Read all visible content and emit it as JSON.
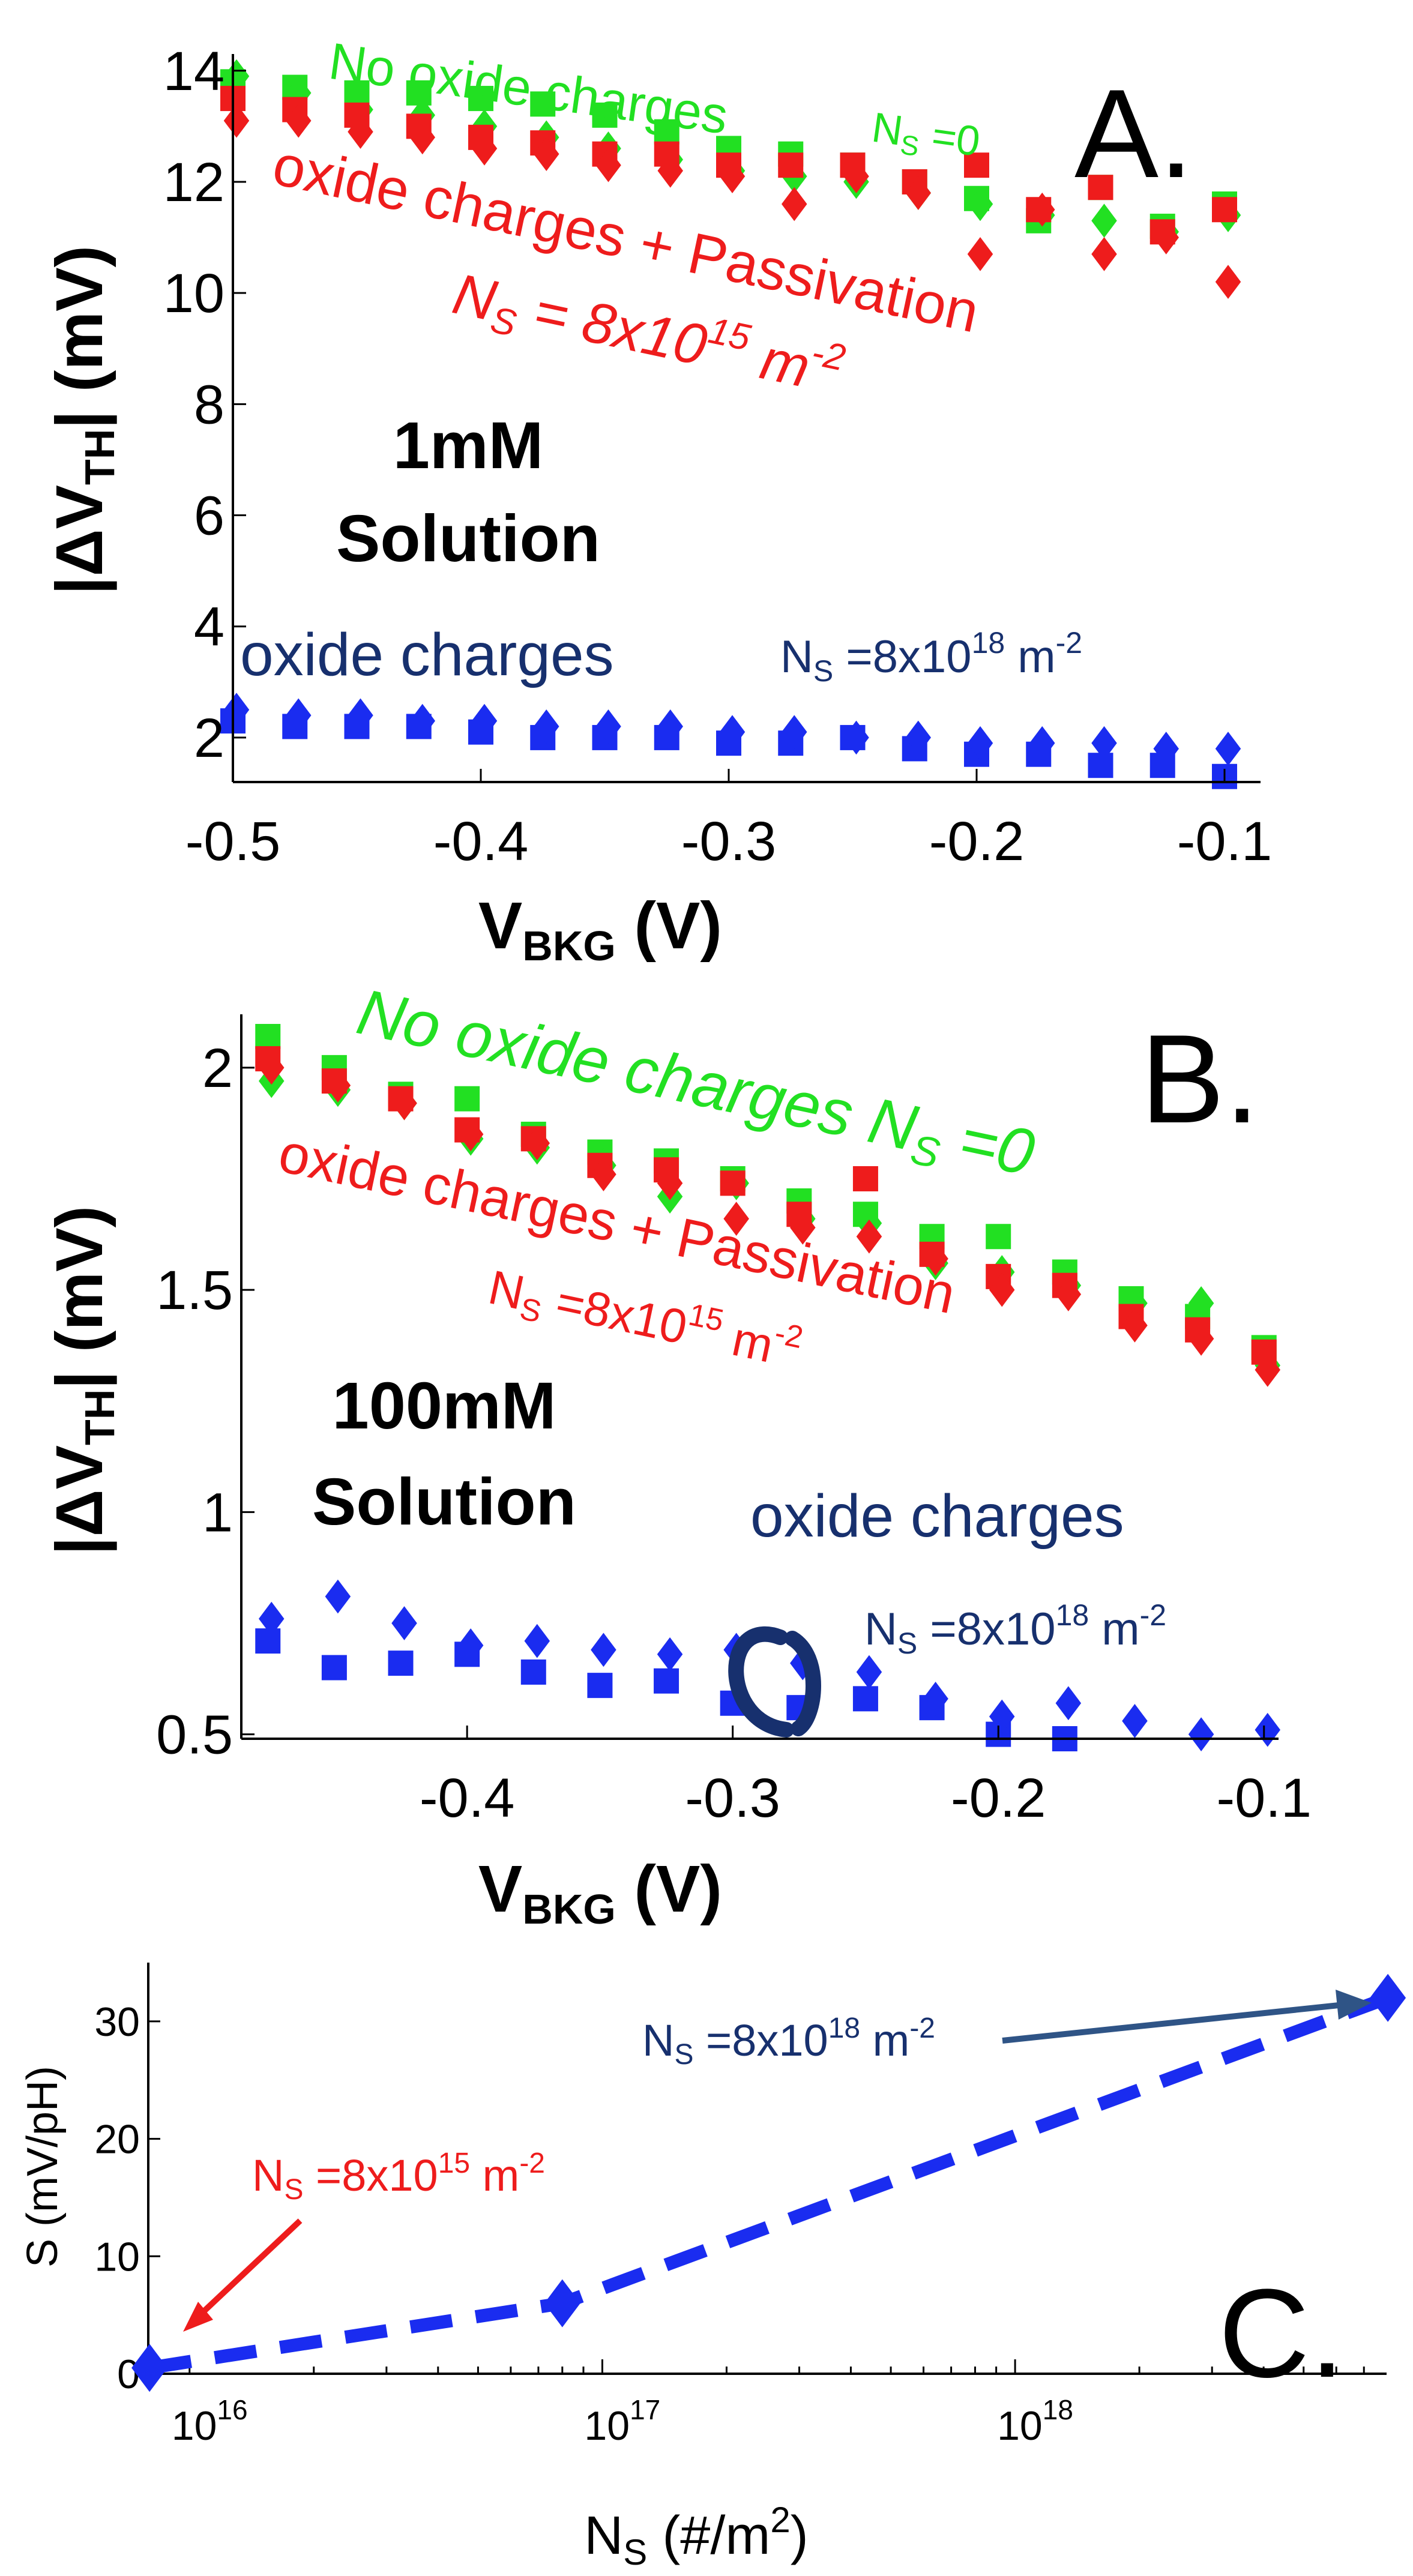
{
  "colors": {
    "no_oxide": "#22e022",
    "passivation": "#ee1c1c",
    "oxide": "#1a2cf0",
    "navy_text": "#17306e",
    "black": "#000000",
    "arrow_red": "#ee1c1c",
    "arrow_navy": "#2f5486"
  },
  "chart_data": [
    {
      "panel": "A",
      "type": "scatter",
      "panel_letter": "A.",
      "xlabel_main": "V",
      "xlabel_sub": "BKG",
      "xlabel_unit": " (V)",
      "ylabel_pre": "|ΔV",
      "ylabel_sub": "TH",
      "ylabel_post": "| (mV)",
      "xlim": [
        -0.5,
        -0.1
      ],
      "ylim": [
        1.2,
        14.3
      ],
      "xticks": [
        -0.5,
        -0.4,
        -0.3,
        -0.2,
        -0.1
      ],
      "xtick_labels": [
        "-0.5",
        "-0.4",
        "-0.3",
        "-0.2",
        "-0.1"
      ],
      "yticks": [
        2,
        4,
        6,
        8,
        10,
        12,
        14
      ],
      "ytick_labels": [
        "2",
        "4",
        "6",
        "8",
        "10",
        "12",
        "14"
      ],
      "solution_label": [
        "1mM",
        "Solution"
      ],
      "annotations": {
        "no_oxide": "No oxide charges",
        "no_oxide_ns": "N",
        "no_oxide_ns_sub": "S",
        "no_oxide_ns_val": " =0",
        "passivation_line1": "oxide charges + Passivation",
        "passivation_ns": "N",
        "passivation_ns_sub": "S",
        "passivation_ns_val": " = 8x10",
        "passivation_ns_exp": "15",
        "passivation_ns_unit": " m",
        "passivation_ns_unit_exp": "-2",
        "oxide": "oxide charges",
        "oxide_ns": "N",
        "oxide_ns_sub": "S",
        "oxide_ns_val": " =8x10",
        "oxide_ns_exp": "18",
        "oxide_ns_unit": " m",
        "oxide_ns_unit_exp": "-2"
      },
      "x": [
        -0.5,
        -0.475,
        -0.45,
        -0.425,
        -0.4,
        -0.375,
        -0.35,
        -0.325,
        -0.3,
        -0.275,
        -0.25,
        -0.225,
        -0.2,
        -0.175,
        -0.15,
        -0.125,
        -0.1
      ],
      "series": [
        {
          "name": "No oxide charges",
          "color_key": "no_oxide",
          "marker": "square",
          "values": [
            13.8,
            13.7,
            13.6,
            13.6,
            13.5,
            13.4,
            13.2,
            12.9,
            12.6,
            12.5,
            12.3,
            12.0,
            11.7,
            11.3,
            11.9,
            11.2,
            11.6
          ]
        },
        {
          "name": "No oxide charges",
          "color_key": "no_oxide",
          "marker": "diamond",
          "values": [
            13.9,
            13.6,
            13.3,
            13.2,
            13.0,
            12.8,
            12.6,
            12.4,
            12.2,
            12.1,
            12.0,
            11.8,
            11.6,
            11.4,
            11.3,
            11.1,
            11.4
          ]
        },
        {
          "name": "oxide charges + Passivation",
          "color_key": "passivation",
          "marker": "square",
          "values": [
            13.5,
            13.3,
            13.2,
            13.0,
            12.8,
            12.7,
            12.5,
            12.5,
            12.3,
            12.3,
            12.3,
            12.0,
            12.3,
            11.5,
            11.9,
            11.1,
            11.5
          ]
        },
        {
          "name": "oxide charges + Passivation",
          "color_key": "passivation",
          "marker": "diamond",
          "values": [
            13.1,
            13.1,
            12.9,
            12.8,
            12.6,
            12.5,
            12.3,
            12.2,
            12.1,
            11.6,
            12.1,
            11.8,
            10.7,
            11.5,
            10.7,
            11.0,
            10.2
          ]
        },
        {
          "name": "oxide charges",
          "color_key": "oxide",
          "marker": "square",
          "values": [
            2.3,
            2.2,
            2.2,
            2.2,
            2.1,
            2.0,
            2.0,
            2.0,
            1.9,
            1.9,
            2.0,
            1.8,
            1.7,
            1.7,
            1.5,
            1.5,
            1.3
          ]
        },
        {
          "name": "oxide charges",
          "color_key": "oxide",
          "marker": "diamond",
          "values": [
            2.5,
            2.4,
            2.4,
            2.3,
            2.3,
            2.2,
            2.2,
            2.2,
            2.1,
            2.1,
            2.0,
            2.0,
            1.9,
            1.9,
            1.9,
            1.8,
            1.8
          ]
        }
      ]
    },
    {
      "panel": "B",
      "type": "scatter",
      "panel_letter": "B.",
      "xlabel_main": "V",
      "xlabel_sub": "BKG",
      "xlabel_unit": " (V)",
      "ylabel_pre": "|ΔV",
      "ylabel_sub": "TH",
      "ylabel_post": "| (mV)",
      "xlim": [
        -0.485,
        -0.09
      ],
      "ylim": [
        0.49,
        2.12
      ],
      "xticks": [
        -0.4,
        -0.3,
        -0.2,
        -0.1
      ],
      "xtick_labels": [
        "-0.4",
        "-0.3",
        "-0.2",
        "-0.1"
      ],
      "yticks": [
        0.5,
        1,
        1.5,
        2
      ],
      "ytick_labels": [
        "0.5",
        "1",
        "1.5",
        "2"
      ],
      "solution_label": [
        "100mM",
        "Solution"
      ],
      "annotations": {
        "no_oxide": "No oxide charges N",
        "no_oxide_ns_sub": "S",
        "no_oxide_ns_val": " =0",
        "passivation_line1": "oxide charges + Passivation",
        "passivation_ns": "N",
        "passivation_ns_sub": "S",
        "passivation_ns_val": " =8x10",
        "passivation_ns_exp": "15",
        "passivation_ns_unit": " m",
        "passivation_ns_unit_exp": "-2",
        "oxide": "oxide charges",
        "oxide_ns": "N",
        "oxide_ns_sub": "S",
        "oxide_ns_val": " =8x10",
        "oxide_ns_exp": "18",
        "oxide_ns_unit": " m",
        "oxide_ns_unit_exp": "-2"
      },
      "x": [
        -0.475,
        -0.45,
        -0.425,
        -0.4,
        -0.375,
        -0.35,
        -0.325,
        -0.3,
        -0.275,
        -0.25,
        -0.225,
        -0.2,
        -0.175,
        -0.15,
        -0.125,
        -0.1
      ],
      "series": [
        {
          "name": "No oxide charges",
          "color_key": "no_oxide",
          "marker": "square",
          "values": [
            2.07,
            2.0,
            1.94,
            1.93,
            1.85,
            1.81,
            1.79,
            1.75,
            1.7,
            1.67,
            1.62,
            1.62,
            1.54,
            1.48,
            1.44,
            1.37
          ]
        },
        {
          "name": "No oxide charges",
          "color_key": "no_oxide",
          "marker": "diamond",
          "values": [
            1.97,
            1.95,
            1.92,
            1.84,
            1.82,
            1.78,
            1.71,
            1.74,
            1.66,
            1.65,
            1.56,
            1.54,
            1.51,
            1.47,
            1.47,
            1.33
          ]
        },
        {
          "name": "oxide charges + Passivation",
          "color_key": "passivation",
          "marker": "square",
          "values": [
            2.02,
            1.97,
            1.93,
            1.86,
            1.84,
            1.78,
            1.77,
            1.74,
            1.67,
            1.75,
            1.58,
            1.53,
            1.51,
            1.44,
            1.41,
            1.36
          ]
        },
        {
          "name": "oxide charges + Passivation",
          "color_key": "passivation",
          "marker": "diamond",
          "values": [
            2.0,
            1.96,
            1.92,
            1.85,
            1.83,
            1.76,
            1.74,
            1.66,
            1.64,
            1.62,
            1.57,
            1.5,
            1.49,
            1.42,
            1.39,
            1.32
          ]
        },
        {
          "name": "oxide charges",
          "color_key": "oxide",
          "marker": "square",
          "values": [
            0.71,
            0.65,
            0.66,
            0.68,
            0.64,
            0.61,
            0.62,
            0.57,
            0.56,
            0.58,
            0.56,
            0.5,
            0.49,
            null,
            null,
            null
          ]
        },
        {
          "name": "oxide charges",
          "color_key": "oxide",
          "marker": "diamond",
          "values": [
            0.76,
            0.81,
            0.75,
            0.7,
            0.71,
            0.69,
            0.68,
            0.69,
            0.66,
            0.64,
            0.58,
            0.54,
            0.57,
            0.53,
            0.5,
            0.51
          ]
        }
      ]
    },
    {
      "panel": "C",
      "type": "line",
      "panel_letter": "C.",
      "xscale": "log",
      "xlim_log10": [
        15.9,
        18.9
      ],
      "ylim": [
        0,
        35
      ],
      "xticks": [
        1e+16,
        1e+17,
        1e+18
      ],
      "xtick_labels": [
        {
          "base": "10",
          "exp": "16"
        },
        {
          "base": "10",
          "exp": "17"
        },
        {
          "base": "10",
          "exp": "18"
        }
      ],
      "yticks": [
        0,
        10,
        20,
        30
      ],
      "ytick_labels": [
        "0",
        "10",
        "20",
        "30"
      ],
      "xlabel_main": "N",
      "xlabel_sub": "S",
      "xlabel_unit": " (#/m",
      "xlabel_unit_exp": "2",
      "xlabel_close": ")",
      "ylabel": "S (mV/pH)",
      "x": [
        8000000000000000.0,
        8e+16,
        8e+18
      ],
      "y": [
        0.5,
        6,
        32
      ],
      "annotations": {
        "low_ns": "N",
        "low_ns_sub": "S",
        "low_ns_val": " =8x10",
        "low_ns_exp": "15",
        "low_ns_unit": " m",
        "low_ns_unit_exp": "-2",
        "high_ns": "N",
        "high_ns_sub": "S",
        "high_ns_val": " =8x10",
        "high_ns_exp": "18",
        "high_ns_unit": " m",
        "high_ns_unit_exp": "-2"
      }
    }
  ]
}
